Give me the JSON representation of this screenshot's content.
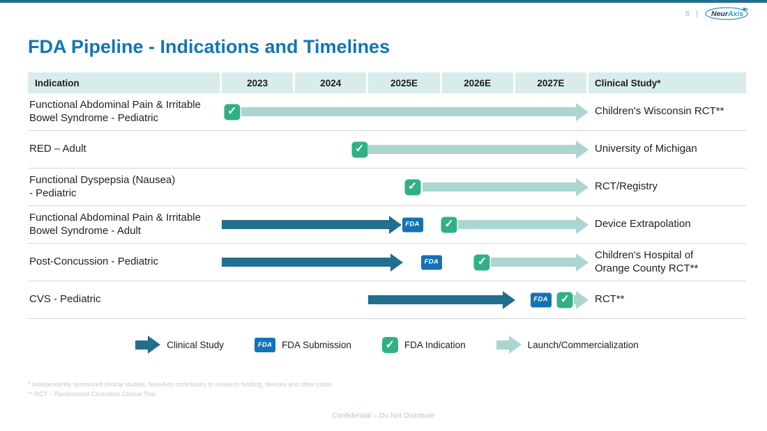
{
  "header": {
    "page_number": "6",
    "separator": "|",
    "logo_neur": "Neur",
    "logo_axis": "Axis"
  },
  "title": "FDA Pipeline - Indications and Timelines",
  "chart_data": {
    "type": "table",
    "title": "FDA Pipeline - Indications and Timelines",
    "columns": [
      "Indication",
      "2023",
      "2024",
      "2025E",
      "2026E",
      "2027E",
      "Clinical Study*"
    ],
    "axis": {
      "units": 5,
      "note": "timeline positions in year-column units: 0 = start of 2023, 5 = end of 2027E"
    },
    "rows": [
      {
        "indication": "Functional Abdominal Pain & Irritable\nBowel Syndrome - Pediatric",
        "clinical_study": "Children's Wisconsin RCT**",
        "timeline": [
          {
            "type": "fda-indication-check",
            "pos": 0.14
          },
          {
            "type": "launch-arrow",
            "start": 0.27,
            "end": 5.0
          }
        ]
      },
      {
        "indication": "RED – Adult",
        "clinical_study": "University of Michigan",
        "timeline": [
          {
            "type": "fda-indication-check",
            "pos": 1.88
          },
          {
            "type": "launch-arrow",
            "start": 2.0,
            "end": 5.0
          }
        ]
      },
      {
        "indication": "Functional Dyspepsia (Nausea)\n- Pediatric",
        "clinical_study": "RCT/Registry",
        "timeline": [
          {
            "type": "fda-indication-check",
            "pos": 2.6
          },
          {
            "type": "launch-arrow",
            "start": 2.74,
            "end": 5.0
          }
        ]
      },
      {
        "indication": "Functional Abdominal Pain & Irritable\nBowel Syndrome - Adult",
        "clinical_study": "Device Extrapolation",
        "timeline": [
          {
            "type": "clinical-study-arrow",
            "start": 0.0,
            "end": 2.45
          },
          {
            "type": "fda-submission-badge",
            "pos": 2.6
          },
          {
            "type": "fda-indication-check",
            "pos": 3.1
          },
          {
            "type": "launch-arrow",
            "start": 3.22,
            "end": 5.0
          }
        ]
      },
      {
        "indication": "Post-Concussion - Pediatric",
        "clinical_study": "Children's Hospital of\nOrange County RCT**",
        "timeline": [
          {
            "type": "clinical-study-arrow",
            "start": 0.0,
            "end": 2.47
          },
          {
            "type": "fda-submission-badge",
            "pos": 2.86
          },
          {
            "type": "fda-indication-check",
            "pos": 3.55
          },
          {
            "type": "launch-arrow",
            "start": 3.67,
            "end": 5.0
          }
        ]
      },
      {
        "indication": "CVS - Pediatric",
        "clinical_study": "RCT**",
        "timeline": [
          {
            "type": "clinical-study-arrow",
            "start": 2.0,
            "end": 4.0
          },
          {
            "type": "fda-submission-badge",
            "pos": 4.35
          },
          {
            "type": "fda-indication-check",
            "pos": 4.68
          },
          {
            "type": "launch-arrow",
            "start": 4.8,
            "end": 5.0
          }
        ]
      }
    ]
  },
  "legend": {
    "items": [
      {
        "icon": "clinical-study-arrow",
        "label": "Clinical Study"
      },
      {
        "icon": "fda-submission-badge",
        "label": "FDA Submission"
      },
      {
        "icon": "fda-indication-check",
        "label": "FDA Indication"
      },
      {
        "icon": "launch-arrow",
        "label": "Launch/Commercialization"
      }
    ]
  },
  "icons": {
    "check_glyph": "✓",
    "fda_badge_text": "FDA"
  },
  "footnotes": [
    "* Independently sponsored clinical studies; NeurAxis contributes to research funding, devices and other costs.",
    "** RCT – Randomized Controlled Clinical Trial"
  ],
  "footer": "Confidential – Do Not Distribute",
  "colors": {
    "title_blue": "#1276b2",
    "header_row_bg": "#d8eceb",
    "clinical_arrow": "#226e8e",
    "launch_arrow": "#abd5d1",
    "check_green": "#31b086",
    "fda_badge_blue": "#1572b4",
    "logo_navy": "#17365f",
    "logo_teal": "#2f9ab5"
  }
}
